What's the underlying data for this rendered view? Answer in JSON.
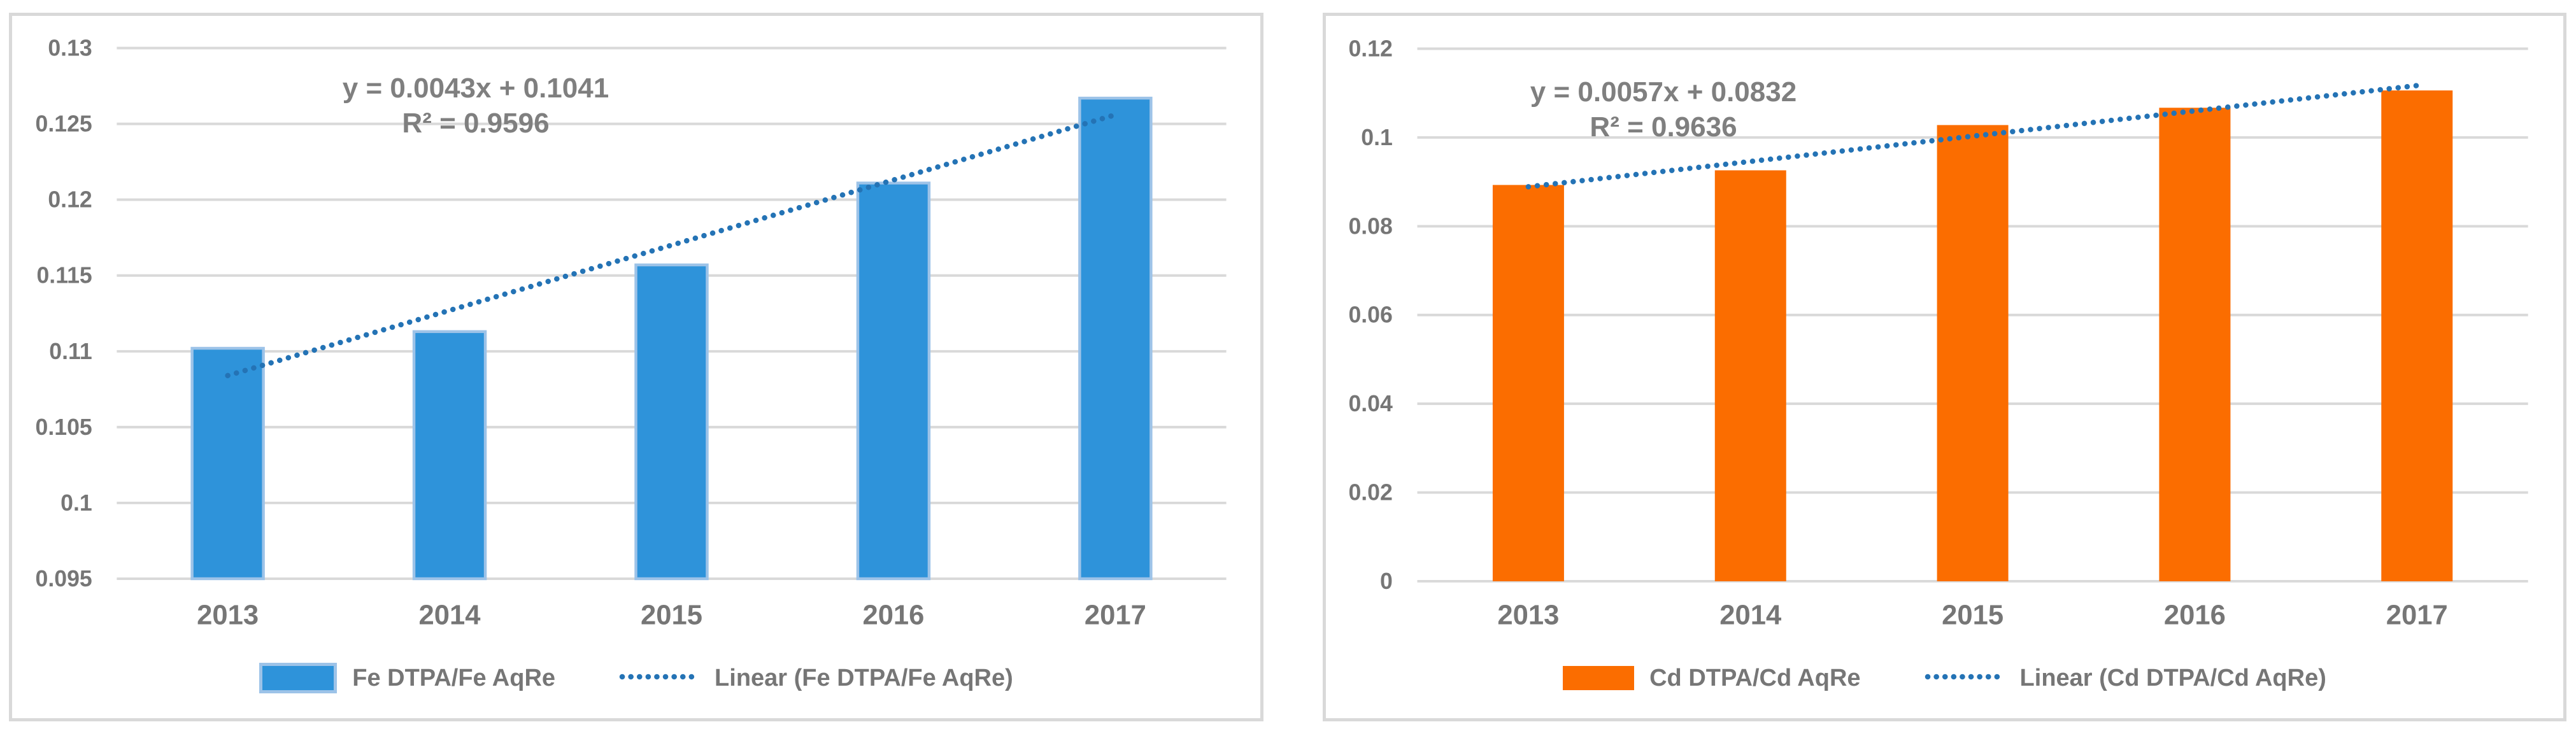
{
  "figure": {
    "background": "#FFFFFF",
    "panel_border_color": "#D9D9D9",
    "grid_color": "#D9D9D9",
    "axis_text_color": "#767676",
    "equation_text_color": "#7F7F7F"
  },
  "chart_data": [
    {
      "type": "bar",
      "title": "",
      "xlabel": "",
      "ylabel": "",
      "grid": true,
      "legend_position": "bottom",
      "categories": [
        "2013",
        "2014",
        "2015",
        "2016",
        "2017"
      ],
      "series": [
        {
          "name": "Fe DTPA/Fe AqRe",
          "values": [
            0.1102,
            0.1113,
            0.1157,
            0.1211,
            0.1267
          ],
          "color": "#2E93DA",
          "border_color": "#9DC3E8"
        }
      ],
      "trendline": {
        "name": "Linear (Fe DTPA/Fe AqRe)",
        "equation": "y = 0.0043x + 0.1041",
        "r_squared": "R² = 0.9596",
        "slope": 0.0043,
        "intercept": 0.1041,
        "color": "#2473B5",
        "style": "dotted"
      },
      "ylim": [
        0.095,
        0.13
      ],
      "yticks": [
        {
          "value": 0.13,
          "label": "0.13"
        },
        {
          "value": 0.125,
          "label": "0.125"
        },
        {
          "value": 0.12,
          "label": "0.12"
        },
        {
          "value": 0.115,
          "label": "0.115"
        },
        {
          "value": 0.11,
          "label": "0.11"
        },
        {
          "value": 0.105,
          "label": "0.105"
        },
        {
          "value": 0.1,
          "label": "0.1"
        },
        {
          "value": 0.095,
          "label": "0.095"
        }
      ]
    },
    {
      "type": "bar",
      "title": "",
      "xlabel": "",
      "ylabel": "",
      "grid": true,
      "legend_position": "bottom",
      "categories": [
        "2013",
        "2014",
        "2015",
        "2016",
        "2017"
      ],
      "series": [
        {
          "name": "Cd DTPA/Cd AqRe",
          "values": [
            0.0893,
            0.0926,
            0.1028,
            0.1067,
            0.1106
          ],
          "color": "#FB6D00",
          "border_color": ""
        }
      ],
      "trendline": {
        "name": "Linear (Cd DTPA/Cd AqRe)",
        "equation": "y = 0.0057x + 0.0832",
        "r_squared": "R² = 0.9636",
        "slope": 0.0057,
        "intercept": 0.0832,
        "color": "#2473B5",
        "style": "dotted"
      },
      "ylim": [
        0,
        0.12
      ],
      "yticks": [
        {
          "value": 0.12,
          "label": "0.12"
        },
        {
          "value": 0.1,
          "label": "0.1"
        },
        {
          "value": 0.08,
          "label": "0.08"
        },
        {
          "value": 0.06,
          "label": "0.06"
        },
        {
          "value": 0.04,
          "label": "0.04"
        },
        {
          "value": 0.02,
          "label": "0.02"
        },
        {
          "value": 0,
          "label": "0"
        }
      ]
    }
  ]
}
